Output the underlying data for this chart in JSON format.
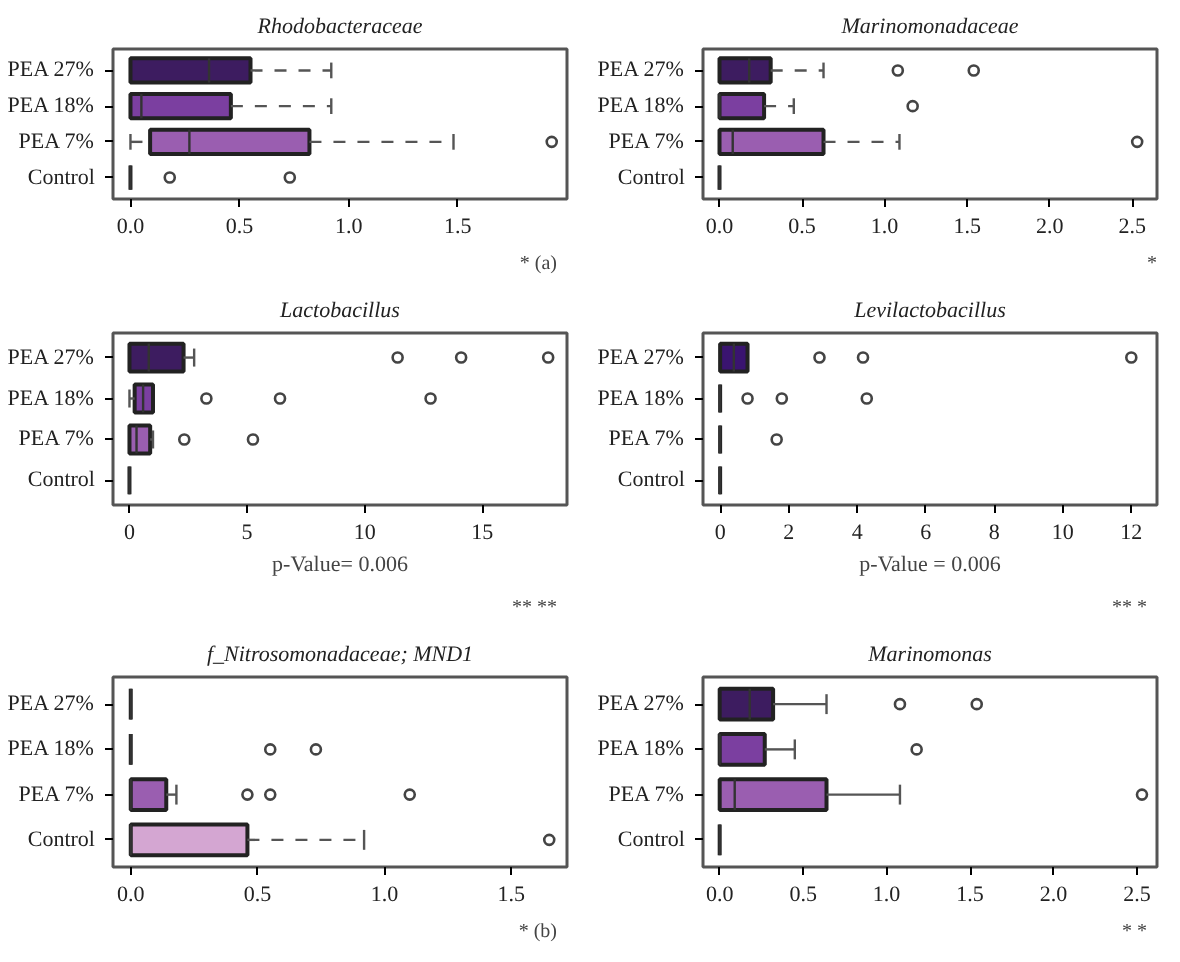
{
  "chart_data": [
    {
      "type": "box",
      "orientation": "horizontal",
      "title": "Rhodobacteraceae",
      "categories": [
        "PEA 27%",
        "PEA 18%",
        "PEA 7%",
        "Control"
      ],
      "colors": [
        "#3d1c60",
        "#7b3fa0",
        "#9a5eb0",
        "#1a1a1a"
      ],
      "line_style": "dashed",
      "marker": "circle",
      "xlim": [
        -0.08,
        2.0
      ],
      "xticks": [
        {
          "value": 0,
          "label": "0.0"
        },
        0.5,
        {
          "value": 1,
          "label": "1.0"
        },
        1.5
      ],
      "boxes": [
        {
          "low": 0,
          "q1": 0,
          "median": 0.36,
          "q3": 0.55,
          "high": 0.92
        },
        {
          "low": 0,
          "q1": 0,
          "median": 0.05,
          "q3": 0.46,
          "high": 0.92
        },
        {
          "low": 0,
          "q1": 0.09,
          "median": 0.27,
          "q3": 0.82,
          "high": 1.48,
          "outliers": [
            1.93
          ]
        },
        {
          "low": 0,
          "q1": 0,
          "median": 0,
          "q3": 0,
          "high": 0,
          "outliers": [
            0.18,
            0.73
          ]
        }
      ],
      "annotations": [
        "*",
        "(a)"
      ]
    },
    {
      "type": "box",
      "orientation": "horizontal",
      "title": "Marinomonadaceae",
      "categories": [
        "PEA 27%",
        "PEA 18%",
        "PEA 7%",
        "Control"
      ],
      "colors": [
        "#3d1c60",
        "#7b3fa0",
        "#9a5eb0",
        "#1a1a1a"
      ],
      "line_style": "dashed",
      "marker": "circle",
      "xlim": [
        -0.1,
        2.65
      ],
      "xticks": [
        {
          "value": 0,
          "label": "0.0"
        },
        0.5,
        {
          "value": 1,
          "label": "1.0"
        },
        1.5,
        {
          "value": 2,
          "label": "2.0"
        },
        2.5
      ],
      "boxes": [
        {
          "low": 0,
          "q1": 0,
          "median": 0.18,
          "q3": 0.31,
          "high": 0.63,
          "outliers": [
            1.08,
            1.54
          ]
        },
        {
          "low": 0,
          "q1": 0,
          "median": 0,
          "q3": 0.27,
          "high": 0.45,
          "outliers": [
            1.17
          ]
        },
        {
          "low": 0,
          "q1": 0,
          "median": 0.08,
          "q3": 0.63,
          "high": 1.09,
          "outliers": [
            2.53
          ]
        },
        {
          "low": 0,
          "q1": 0,
          "median": 0,
          "q3": 0,
          "high": 0
        }
      ],
      "annotations": [
        "*"
      ]
    },
    {
      "type": "box",
      "orientation": "horizontal",
      "title": "Lactobacillus",
      "xlabel": "p-Value= 0.006",
      "categories": [
        "PEA 27%",
        "PEA 18%",
        "PEA 7%",
        "Control"
      ],
      "colors": [
        "#3d1c60",
        "#7b3fa0",
        "#9a5eb0",
        "#1a1a1a"
      ],
      "line_style": "solid",
      "marker": "circle",
      "xlim": [
        -0.7,
        18.6
      ],
      "xticks": [
        0,
        5,
        10,
        15
      ],
      "boxes": [
        {
          "low": 0,
          "q1": 0,
          "median": 0.82,
          "q3": 2.3,
          "high": 2.75,
          "outliers": [
            11.4,
            14.1,
            17.8
          ]
        },
        {
          "low": 0,
          "q1": 0.22,
          "median": 0.58,
          "q3": 1.0,
          "high": 1.0,
          "outliers": [
            3.27,
            6.4,
            12.8
          ]
        },
        {
          "low": 0,
          "q1": 0,
          "median": 0.3,
          "q3": 0.88,
          "high": 1.0,
          "outliers": [
            2.33,
            5.25
          ]
        },
        {
          "low": 0,
          "q1": 0,
          "median": 0,
          "q3": 0,
          "high": 0
        }
      ],
      "annotations": [
        "**",
        "**"
      ]
    },
    {
      "type": "box",
      "orientation": "horizontal",
      "title": "Levilactobacillus",
      "xlabel": "p-Value = 0.006",
      "categories": [
        "PEA 27%",
        "PEA 18%",
        "PEA 7%",
        "Control"
      ],
      "colors": [
        "#3a1470",
        "#1a1a1a",
        "#1a1a1a",
        "#1a1a1a"
      ],
      "line_style": "solid",
      "marker": "circle",
      "xlim": [
        -0.5,
        12.75
      ],
      "xticks": [
        0,
        2,
        4,
        6,
        8,
        10,
        12
      ],
      "boxes": [
        {
          "low": 0,
          "q1": 0,
          "median": 0.4,
          "q3": 0.8,
          "high": 0.8,
          "outliers": [
            2.9,
            4.17,
            12.0
          ]
        },
        {
          "low": 0,
          "q1": 0,
          "median": 0,
          "q3": 0,
          "high": 0,
          "outliers": [
            0.8,
            1.8,
            4.28
          ]
        },
        {
          "low": 0,
          "q1": 0,
          "median": 0,
          "q3": 0,
          "high": 0,
          "outliers": [
            1.65
          ]
        },
        {
          "low": 0,
          "q1": 0,
          "median": 0,
          "q3": 0,
          "high": 0
        }
      ],
      "annotations": [
        "**",
        "*"
      ]
    },
    {
      "type": "box",
      "orientation": "horizontal",
      "title": "f_Nitrosomonadaceae; MND1",
      "categories": [
        "PEA 27%",
        "PEA 18%",
        "PEA 7%",
        "Control"
      ],
      "colors": [
        "#1a1a1a",
        "#1a1a1a",
        "#9a5eb0",
        "#d4a6d2"
      ],
      "line_style": "dashed",
      "marker": "circle",
      "xlim": [
        -0.07,
        1.72
      ],
      "xticks": [
        {
          "value": 0,
          "label": "0.0"
        },
        0.5,
        {
          "value": 1,
          "label": "1.0"
        },
        1.5
      ],
      "boxes": [
        {
          "low": 0,
          "q1": 0,
          "median": 0,
          "q3": 0,
          "high": 0
        },
        {
          "low": 0,
          "q1": 0,
          "median": 0,
          "q3": 0,
          "high": 0,
          "outliers": [
            0.55,
            0.73
          ]
        },
        {
          "low": 0,
          "q1": 0,
          "median": 0,
          "q3": 0.14,
          "high": 0.18,
          "outliers": [
            0.46,
            0.55,
            1.1
          ]
        },
        {
          "low": 0,
          "q1": 0,
          "median": 0,
          "q3": 0.46,
          "high": 0.92,
          "outliers": [
            1.65
          ]
        }
      ],
      "annotations": [
        "*",
        "(b)"
      ]
    },
    {
      "type": "box",
      "orientation": "horizontal",
      "title": "Marinomonas",
      "categories": [
        "PEA 27%",
        "PEA 18%",
        "PEA 7%",
        "Control"
      ],
      "colors": [
        "#3d1c60",
        "#7b3fa0",
        "#9a5eb0",
        "#1a1a1a"
      ],
      "line_style": "solid",
      "marker": "circle",
      "xlim": [
        -0.1,
        2.62
      ],
      "xticks": [
        {
          "value": 0,
          "label": "0.0"
        },
        0.5,
        {
          "value": 1,
          "label": "1.0"
        },
        1.5,
        {
          "value": 2,
          "label": "2.0"
        },
        2.5
      ],
      "boxes": [
        {
          "low": 0,
          "q1": 0,
          "median": 0.18,
          "q3": 0.32,
          "high": 0.64,
          "outliers": [
            1.08,
            1.54
          ]
        },
        {
          "low": 0,
          "q1": 0,
          "median": 0,
          "q3": 0.27,
          "high": 0.45,
          "outliers": [
            1.18
          ]
        },
        {
          "low": 0,
          "q1": 0,
          "median": 0.09,
          "q3": 0.64,
          "high": 1.08,
          "outliers": [
            2.53
          ]
        },
        {
          "low": 0,
          "q1": 0,
          "median": 0,
          "q3": 0,
          "high": 0
        }
      ],
      "annotations": [
        "*",
        "*"
      ]
    }
  ]
}
